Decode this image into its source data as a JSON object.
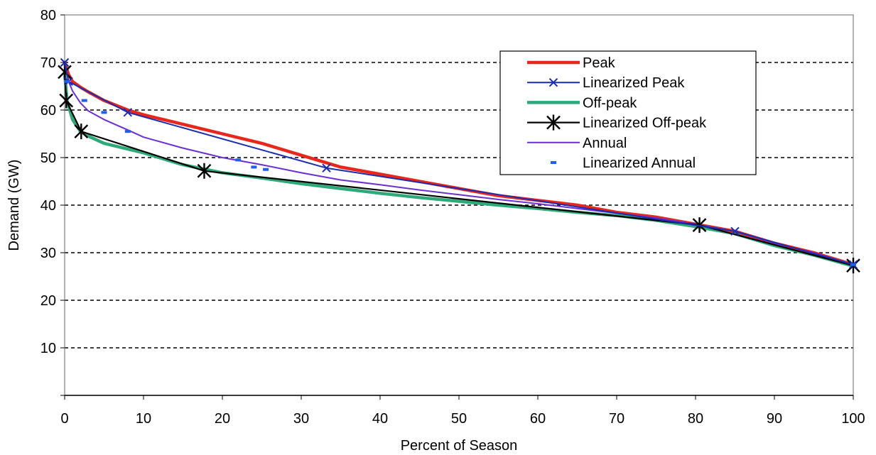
{
  "chart_data": {
    "type": "line",
    "title": "",
    "xlabel": "Percent of Season",
    "ylabel": "Demand (GW)",
    "xlim": [
      0,
      100
    ],
    "ylim": [
      0,
      80
    ],
    "xticks": [
      0,
      10,
      20,
      30,
      40,
      50,
      60,
      70,
      80,
      90,
      100
    ],
    "yticks": [
      10,
      20,
      30,
      40,
      50,
      60,
      70,
      80
    ],
    "ytick_zero_label": false,
    "grid": {
      "y": true,
      "style": "dashed",
      "x": false
    },
    "legend_position": "top-right",
    "series": [
      {
        "name": "Peak",
        "color": "#e8261c",
        "style": "thick-line",
        "x": [
          0,
          0.5,
          1,
          2,
          3,
          5,
          8,
          10,
          15,
          20,
          25,
          30,
          35,
          40,
          45,
          50,
          55,
          60,
          65,
          70,
          75,
          80,
          85,
          90,
          95,
          100
        ],
        "y": [
          70,
          67.5,
          66,
          64.8,
          63.8,
          62,
          60,
          59,
          57,
          55,
          53,
          50.5,
          48,
          46.5,
          45,
          43.5,
          42,
          41,
          40,
          38.5,
          37.5,
          36,
          34.5,
          32,
          30,
          27.5
        ]
      },
      {
        "name": "Linearized Peak",
        "color": "#1c2cb0",
        "style": "line-x-marker",
        "x": [
          0,
          0.5,
          8,
          33.2,
          85,
          100
        ],
        "y": [
          70,
          66,
          59.5,
          47.8,
          34.5,
          27.5
        ]
      },
      {
        "name": "Off-peak",
        "color": "#2eaa7a",
        "style": "thick-line",
        "x": [
          0,
          0.3,
          1,
          2,
          3,
          5,
          8,
          10,
          15,
          20,
          25,
          30,
          35,
          40,
          45,
          50,
          55,
          60,
          65,
          70,
          75,
          80,
          85,
          90,
          95,
          100
        ],
        "y": [
          68,
          62,
          58,
          55.5,
          54.5,
          53,
          51.8,
          51,
          48.5,
          46.8,
          45.7,
          44.5,
          43.5,
          42.5,
          41.6,
          40.8,
          40,
          39.3,
          38.5,
          37.8,
          36.8,
          35.5,
          34,
          31.5,
          29.5,
          27.2
        ]
      },
      {
        "name": "Linearized Off-peak",
        "color": "#000000",
        "style": "line-star-marker",
        "x": [
          0,
          0.2,
          2.1,
          17.7,
          80.5,
          100
        ],
        "y": [
          68,
          62,
          55.5,
          47.2,
          35.8,
          27.3
        ]
      },
      {
        "name": "Annual",
        "color": "#6b2fd6",
        "style": "thin-line",
        "x": [
          0,
          0.5,
          1,
          2,
          3,
          5,
          8,
          10,
          15,
          20,
          25,
          30,
          35,
          40,
          45,
          50,
          55,
          60,
          65,
          70,
          75,
          80,
          85,
          90,
          95,
          100
        ],
        "y": [
          70,
          66,
          64,
          61.5,
          59.8,
          58,
          55.8,
          54.3,
          52,
          50,
          48.5,
          46.8,
          45.3,
          44.3,
          43.2,
          42.2,
          41.2,
          40.3,
          39.3,
          38.3,
          37.3,
          36,
          34.5,
          32,
          30,
          27.5
        ]
      },
      {
        "name": "Linearized Annual",
        "color": "#1e5ef0",
        "style": "dash-marker",
        "x": [
          0.3,
          2.5,
          5,
          8,
          22,
          24,
          25.5,
          100
        ],
        "y": [
          66,
          62,
          59.5,
          55.5,
          49.5,
          48,
          47.5,
          27.5
        ]
      }
    ]
  }
}
